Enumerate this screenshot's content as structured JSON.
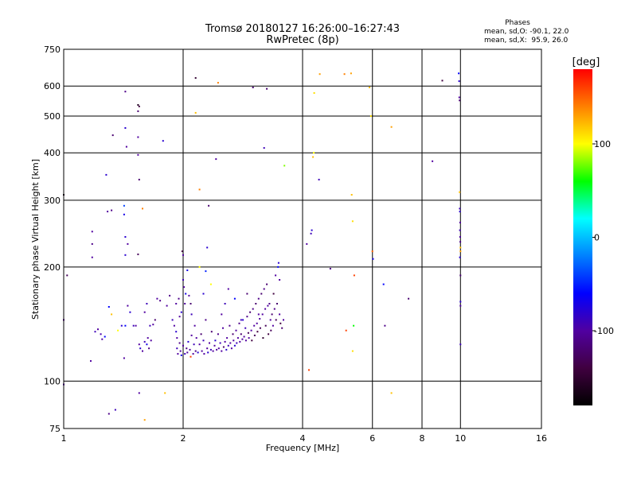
{
  "chart_data": {
    "type": "scatter",
    "title": "Tromsø 20180127 16:26:00–16:27:43",
    "subtitle": "RwPretec (8p)",
    "xlabel": "Frequency [MHz]",
    "ylabel": "Stationary phase Virtual Height [km]",
    "xscale": "log",
    "yscale": "log",
    "xlim": [
      1,
      16
    ],
    "ylim": [
      75,
      750
    ],
    "x_ticks": [
      1,
      2,
      4,
      6,
      8,
      10,
      16
    ],
    "y_ticks": [
      75,
      100,
      200,
      300,
      400,
      500,
      600,
      750
    ],
    "grid": true,
    "stats": {
      "heading": "Phases",
      "line_o": "mean, sd,O: -90.1, 22.0",
      "line_x": "mean, sd,X:  95.9, 26.0"
    },
    "colorbar": {
      "label": "[deg]",
      "ticks": [
        100,
        0,
        -100
      ],
      "range": [
        -180,
        180
      ],
      "colors": [
        "#000000",
        "#400040",
        "#5000a0",
        "#0000ff",
        "#0080ff",
        "#00ffff",
        "#00ff00",
        "#ffff00",
        "#ff8000",
        "#ff0000"
      ]
    },
    "points": [
      {
        "x": 1.0,
        "y": 310,
        "p": -160
      },
      {
        "x": 1.02,
        "y": 190,
        "p": -130
      },
      {
        "x": 1.0,
        "y": 145,
        "p": -110
      },
      {
        "x": 1.0,
        "y": 98,
        "p": -100
      },
      {
        "x": 1.18,
        "y": 248,
        "p": -100
      },
      {
        "x": 1.18,
        "y": 230,
        "p": -110
      },
      {
        "x": 1.18,
        "y": 212,
        "p": -100
      },
      {
        "x": 1.17,
        "y": 113,
        "p": -100
      },
      {
        "x": 1.2,
        "y": 135,
        "p": -90
      },
      {
        "x": 1.22,
        "y": 137,
        "p": -100
      },
      {
        "x": 1.24,
        "y": 133,
        "p": -95
      },
      {
        "x": 1.25,
        "y": 129,
        "p": -100
      },
      {
        "x": 1.27,
        "y": 131,
        "p": -60
      },
      {
        "x": 1.28,
        "y": 350,
        "p": -80
      },
      {
        "x": 1.29,
        "y": 280,
        "p": -100
      },
      {
        "x": 1.32,
        "y": 282,
        "p": -110
      },
      {
        "x": 1.33,
        "y": 445,
        "p": -120
      },
      {
        "x": 1.3,
        "y": 157,
        "p": -60
      },
      {
        "x": 1.32,
        "y": 150,
        "p": 120
      },
      {
        "x": 1.35,
        "y": 84,
        "p": -90
      },
      {
        "x": 1.3,
        "y": 82,
        "p": -110
      },
      {
        "x": 1.37,
        "y": 136,
        "p": 100
      },
      {
        "x": 1.4,
        "y": 140,
        "p": -80
      },
      {
        "x": 1.42,
        "y": 115,
        "p": -100
      },
      {
        "x": 1.43,
        "y": 140,
        "p": -60
      },
      {
        "x": 1.43,
        "y": 580,
        "p": -110
      },
      {
        "x": 1.43,
        "y": 465,
        "p": -80
      },
      {
        "x": 1.44,
        "y": 415,
        "p": -100
      },
      {
        "x": 1.42,
        "y": 290,
        "p": -40
      },
      {
        "x": 1.42,
        "y": 275,
        "p": -70
      },
      {
        "x": 1.43,
        "y": 240,
        "p": -80
      },
      {
        "x": 1.43,
        "y": 215,
        "p": -80
      },
      {
        "x": 1.45,
        "y": 230,
        "p": -100
      },
      {
        "x": 1.45,
        "y": 158,
        "p": -100
      },
      {
        "x": 1.47,
        "y": 152,
        "p": -80
      },
      {
        "x": 1.5,
        "y": 140,
        "p": -90
      },
      {
        "x": 1.52,
        "y": 140,
        "p": -100
      },
      {
        "x": 1.54,
        "y": 535,
        "p": -160
      },
      {
        "x": 1.55,
        "y": 530,
        "p": -140
      },
      {
        "x": 1.54,
        "y": 515,
        "p": -120
      },
      {
        "x": 1.54,
        "y": 440,
        "p": -100
      },
      {
        "x": 1.54,
        "y": 395,
        "p": -100
      },
      {
        "x": 1.55,
        "y": 340,
        "p": -120
      },
      {
        "x": 1.54,
        "y": 216,
        "p": -130
      },
      {
        "x": 1.55,
        "y": 93,
        "p": -100
      },
      {
        "x": 1.55,
        "y": 125,
        "p": -100
      },
      {
        "x": 1.56,
        "y": 122,
        "p": -80
      },
      {
        "x": 1.58,
        "y": 120,
        "p": -100
      },
      {
        "x": 1.6,
        "y": 127,
        "p": -90
      },
      {
        "x": 1.58,
        "y": 285,
        "p": 140
      },
      {
        "x": 1.6,
        "y": 79,
        "p": 130
      },
      {
        "x": 1.62,
        "y": 125,
        "p": -70
      },
      {
        "x": 1.63,
        "y": 130,
        "p": -100
      },
      {
        "x": 1.64,
        "y": 122,
        "p": -110
      },
      {
        "x": 1.66,
        "y": 128,
        "p": -100
      },
      {
        "x": 1.6,
        "y": 152,
        "p": -100
      },
      {
        "x": 1.62,
        "y": 160,
        "p": -90
      },
      {
        "x": 1.65,
        "y": 140,
        "p": -90
      },
      {
        "x": 1.68,
        "y": 141,
        "p": -100
      },
      {
        "x": 1.7,
        "y": 145,
        "p": -120
      },
      {
        "x": 1.72,
        "y": 165,
        "p": -100
      },
      {
        "x": 1.75,
        "y": 163,
        "p": -110
      },
      {
        "x": 1.78,
        "y": 430,
        "p": -80
      },
      {
        "x": 1.8,
        "y": 93,
        "p": 120
      },
      {
        "x": 1.82,
        "y": 158,
        "p": -100
      },
      {
        "x": 1.85,
        "y": 168,
        "p": -110
      },
      {
        "x": 1.88,
        "y": 145,
        "p": -90
      },
      {
        "x": 1.92,
        "y": 160,
        "p": -100
      },
      {
        "x": 1.95,
        "y": 165,
        "p": -110
      },
      {
        "x": 1.96,
        "y": 148,
        "p": -100
      },
      {
        "x": 1.98,
        "y": 152,
        "p": -80
      },
      {
        "x": 1.99,
        "y": 220,
        "p": -140
      },
      {
        "x": 2.0,
        "y": 215,
        "p": -100
      },
      {
        "x": 2.0,
        "y": 185,
        "p": -90
      },
      {
        "x": 2.01,
        "y": 177,
        "p": -100
      },
      {
        "x": 2.02,
        "y": 160,
        "p": -100
      },
      {
        "x": 2.03,
        "y": 170,
        "p": -70
      },
      {
        "x": 2.05,
        "y": 196,
        "p": -70
      },
      {
        "x": 2.07,
        "y": 168,
        "p": -100
      },
      {
        "x": 2.09,
        "y": 160,
        "p": -120
      },
      {
        "x": 2.1,
        "y": 150,
        "p": -90
      },
      {
        "x": 1.9,
        "y": 140,
        "p": -100
      },
      {
        "x": 1.92,
        "y": 135,
        "p": -80
      },
      {
        "x": 1.93,
        "y": 130,
        "p": -100
      },
      {
        "x": 1.93,
        "y": 122,
        "p": -90
      },
      {
        "x": 1.94,
        "y": 118,
        "p": -100
      },
      {
        "x": 1.96,
        "y": 126,
        "p": -110
      },
      {
        "x": 1.97,
        "y": 120,
        "p": -100
      },
      {
        "x": 1.98,
        "y": 117,
        "p": -70
      },
      {
        "x": 2.0,
        "y": 124,
        "p": -100
      },
      {
        "x": 2.02,
        "y": 118,
        "p": -90
      },
      {
        "x": 2.04,
        "y": 122,
        "p": -110
      },
      {
        "x": 2.05,
        "y": 119,
        "p": -100
      },
      {
        "x": 2.06,
        "y": 127,
        "p": -80
      },
      {
        "x": 2.08,
        "y": 121,
        "p": -100
      },
      {
        "x": 2.09,
        "y": 116,
        "p": 160
      },
      {
        "x": 2.1,
        "y": 132,
        "p": -100
      },
      {
        "x": 2.12,
        "y": 118,
        "p": -100
      },
      {
        "x": 2.13,
        "y": 125,
        "p": -90
      },
      {
        "x": 2.14,
        "y": 140,
        "p": -100
      },
      {
        "x": 2.15,
        "y": 120,
        "p": -110
      },
      {
        "x": 2.16,
        "y": 130,
        "p": -100
      },
      {
        "x": 2.18,
        "y": 119,
        "p": -80
      },
      {
        "x": 2.2,
        "y": 125,
        "p": -100
      },
      {
        "x": 2.22,
        "y": 133,
        "p": -120
      },
      {
        "x": 2.23,
        "y": 120,
        "p": -100
      },
      {
        "x": 2.25,
        "y": 128,
        "p": -90
      },
      {
        "x": 2.26,
        "y": 118,
        "p": -100
      },
      {
        "x": 2.28,
        "y": 145,
        "p": -110
      },
      {
        "x": 2.3,
        "y": 122,
        "p": -100
      },
      {
        "x": 2.31,
        "y": 119,
        "p": -80
      },
      {
        "x": 2.33,
        "y": 126,
        "p": -100
      },
      {
        "x": 2.35,
        "y": 121,
        "p": -90
      },
      {
        "x": 2.36,
        "y": 135,
        "p": -120
      },
      {
        "x": 2.38,
        "y": 120,
        "p": -100
      },
      {
        "x": 2.4,
        "y": 124,
        "p": -100
      },
      {
        "x": 2.41,
        "y": 128,
        "p": -80
      },
      {
        "x": 2.43,
        "y": 121,
        "p": -100
      },
      {
        "x": 2.45,
        "y": 133,
        "p": -110
      },
      {
        "x": 2.46,
        "y": 122,
        "p": -100
      },
      {
        "x": 2.48,
        "y": 126,
        "p": -90
      },
      {
        "x": 2.5,
        "y": 120,
        "p": -100
      },
      {
        "x": 2.52,
        "y": 138,
        "p": -100
      },
      {
        "x": 2.53,
        "y": 123,
        "p": -120
      },
      {
        "x": 2.55,
        "y": 127,
        "p": -100
      },
      {
        "x": 2.57,
        "y": 121,
        "p": -80
      },
      {
        "x": 2.58,
        "y": 130,
        "p": -100
      },
      {
        "x": 2.6,
        "y": 124,
        "p": -90
      },
      {
        "x": 2.62,
        "y": 140,
        "p": -110
      },
      {
        "x": 2.63,
        "y": 126,
        "p": -100
      },
      {
        "x": 2.65,
        "y": 122,
        "p": -100
      },
      {
        "x": 2.67,
        "y": 133,
        "p": -120
      },
      {
        "x": 2.68,
        "y": 128,
        "p": -100
      },
      {
        "x": 2.7,
        "y": 124,
        "p": -80
      },
      {
        "x": 2.72,
        "y": 136,
        "p": -100
      },
      {
        "x": 2.73,
        "y": 126,
        "p": -90
      },
      {
        "x": 2.75,
        "y": 130,
        "p": -100
      },
      {
        "x": 2.77,
        "y": 142,
        "p": -110
      },
      {
        "x": 2.78,
        "y": 127,
        "p": -100
      },
      {
        "x": 2.8,
        "y": 133,
        "p": -120
      },
      {
        "x": 2.82,
        "y": 129,
        "p": -100
      },
      {
        "x": 2.83,
        "y": 145,
        "p": -80
      },
      {
        "x": 2.85,
        "y": 131,
        "p": -100
      },
      {
        "x": 2.87,
        "y": 138,
        "p": -90
      },
      {
        "x": 2.88,
        "y": 128,
        "p": -100
      },
      {
        "x": 2.9,
        "y": 148,
        "p": -110
      },
      {
        "x": 2.92,
        "y": 134,
        "p": -130
      },
      {
        "x": 2.93,
        "y": 130,
        "p": -100
      },
      {
        "x": 2.95,
        "y": 152,
        "p": -120
      },
      {
        "x": 2.97,
        "y": 136,
        "p": -100
      },
      {
        "x": 2.98,
        "y": 128,
        "p": -140
      },
      {
        "x": 3.0,
        "y": 155,
        "p": -110
      },
      {
        "x": 3.02,
        "y": 140,
        "p": -100
      },
      {
        "x": 3.03,
        "y": 132,
        "p": -130
      },
      {
        "x": 3.05,
        "y": 160,
        "p": -120
      },
      {
        "x": 3.07,
        "y": 142,
        "p": -100
      },
      {
        "x": 3.08,
        "y": 135,
        "p": -140
      },
      {
        "x": 3.1,
        "y": 165,
        "p": -110
      },
      {
        "x": 3.12,
        "y": 146,
        "p": -100
      },
      {
        "x": 3.13,
        "y": 138,
        "p": -130
      },
      {
        "x": 3.15,
        "y": 170,
        "p": -120
      },
      {
        "x": 3.17,
        "y": 150,
        "p": -100
      },
      {
        "x": 3.18,
        "y": 130,
        "p": -150
      },
      {
        "x": 3.2,
        "y": 175,
        "p": -110
      },
      {
        "x": 3.22,
        "y": 155,
        "p": -100
      },
      {
        "x": 3.23,
        "y": 140,
        "p": -130
      },
      {
        "x": 3.25,
        "y": 180,
        "p": -120
      },
      {
        "x": 3.27,
        "y": 158,
        "p": -100
      },
      {
        "x": 3.28,
        "y": 133,
        "p": -140
      },
      {
        "x": 3.3,
        "y": 160,
        "p": -110
      },
      {
        "x": 3.32,
        "y": 145,
        "p": -100
      },
      {
        "x": 3.33,
        "y": 136,
        "p": -130
      },
      {
        "x": 3.35,
        "y": 150,
        "p": -120
      },
      {
        "x": 3.37,
        "y": 140,
        "p": -100
      },
      {
        "x": 3.38,
        "y": 170,
        "p": -140
      },
      {
        "x": 3.4,
        "y": 155,
        "p": -110
      },
      {
        "x": 3.42,
        "y": 190,
        "p": -100
      },
      {
        "x": 3.43,
        "y": 145,
        "p": -130
      },
      {
        "x": 3.45,
        "y": 160,
        "p": -120
      },
      {
        "x": 3.47,
        "y": 200,
        "p": -60
      },
      {
        "x": 3.48,
        "y": 205,
        "p": -80
      },
      {
        "x": 3.5,
        "y": 150,
        "p": -100
      },
      {
        "x": 3.52,
        "y": 142,
        "p": -140
      },
      {
        "x": 3.55,
        "y": 138,
        "p": -120
      },
      {
        "x": 3.58,
        "y": 145,
        "p": -100
      },
      {
        "x": 2.15,
        "y": 630,
        "p": -150
      },
      {
        "x": 2.2,
        "y": 320,
        "p": 140
      },
      {
        "x": 2.2,
        "y": 200,
        "p": 100
      },
      {
        "x": 2.25,
        "y": 170,
        "p": -80
      },
      {
        "x": 2.28,
        "y": 195,
        "p": -50
      },
      {
        "x": 2.3,
        "y": 225,
        "p": -80
      },
      {
        "x": 2.32,
        "y": 290,
        "p": -120
      },
      {
        "x": 2.35,
        "y": 180,
        "p": 100
      },
      {
        "x": 2.42,
        "y": 385,
        "p": -100
      },
      {
        "x": 2.45,
        "y": 612,
        "p": 140
      },
      {
        "x": 2.5,
        "y": 150,
        "p": -100
      },
      {
        "x": 2.55,
        "y": 160,
        "p": -90
      },
      {
        "x": 2.6,
        "y": 175,
        "p": -100
      },
      {
        "x": 2.7,
        "y": 165,
        "p": -60
      },
      {
        "x": 2.8,
        "y": 145,
        "p": -90
      },
      {
        "x": 2.9,
        "y": 170,
        "p": -120
      },
      {
        "x": 3.0,
        "y": 595,
        "p": -120
      },
      {
        "x": 3.1,
        "y": 150,
        "p": -100
      },
      {
        "x": 3.2,
        "y": 412,
        "p": -90
      },
      {
        "x": 3.25,
        "y": 590,
        "p": -120
      },
      {
        "x": 3.5,
        "y": 185,
        "p": -100
      },
      {
        "x": 3.6,
        "y": 370,
        "p": 80
      },
      {
        "x": 2.15,
        "y": 510,
        "p": 120
      },
      {
        "x": 4.1,
        "y": 230,
        "p": -100
      },
      {
        "x": 4.15,
        "y": 107,
        "p": 160
      },
      {
        "x": 4.2,
        "y": 245,
        "p": -90
      },
      {
        "x": 4.22,
        "y": 250,
        "p": -80
      },
      {
        "x": 4.25,
        "y": 390,
        "p": 120
      },
      {
        "x": 4.27,
        "y": 400,
        "p": 100
      },
      {
        "x": 4.28,
        "y": 575,
        "p": 110
      },
      {
        "x": 4.4,
        "y": 340,
        "p": -90
      },
      {
        "x": 4.42,
        "y": 645,
        "p": 130
      },
      {
        "x": 4.7,
        "y": 198,
        "p": -110
      },
      {
        "x": 5.1,
        "y": 645,
        "p": 140
      },
      {
        "x": 5.15,
        "y": 136,
        "p": 160
      },
      {
        "x": 5.3,
        "y": 648,
        "p": 130
      },
      {
        "x": 5.35,
        "y": 264,
        "p": 110
      },
      {
        "x": 5.32,
        "y": 310,
        "p": 120
      },
      {
        "x": 5.35,
        "y": 120,
        "p": 110
      },
      {
        "x": 5.38,
        "y": 140,
        "p": 60
      },
      {
        "x": 5.4,
        "y": 190,
        "p": 160
      },
      {
        "x": 5.9,
        "y": 595,
        "p": 120
      },
      {
        "x": 5.95,
        "y": 500,
        "p": 110
      },
      {
        "x": 6.0,
        "y": 220,
        "p": 150
      },
      {
        "x": 6.02,
        "y": 210,
        "p": -70
      },
      {
        "x": 6.4,
        "y": 180,
        "p": -60
      },
      {
        "x": 6.45,
        "y": 140,
        "p": -110
      },
      {
        "x": 6.7,
        "y": 468,
        "p": 130
      },
      {
        "x": 6.7,
        "y": 93,
        "p": 120
      },
      {
        "x": 7.4,
        "y": 165,
        "p": -120
      },
      {
        "x": 8.5,
        "y": 380,
        "p": -100
      },
      {
        "x": 9.0,
        "y": 620,
        "p": -140
      },
      {
        "x": 9.9,
        "y": 648,
        "p": -60
      },
      {
        "x": 9.92,
        "y": 618,
        "p": -80
      },
      {
        "x": 9.93,
        "y": 560,
        "p": -100
      },
      {
        "x": 9.95,
        "y": 550,
        "p": -120
      },
      {
        "x": 9.95,
        "y": 315,
        "p": 120
      },
      {
        "x": 9.96,
        "y": 285,
        "p": -90
      },
      {
        "x": 9.97,
        "y": 280,
        "p": -80
      },
      {
        "x": 9.98,
        "y": 262,
        "p": -100
      },
      {
        "x": 9.97,
        "y": 250,
        "p": -90
      },
      {
        "x": 9.98,
        "y": 240,
        "p": -100
      },
      {
        "x": 9.99,
        "y": 233,
        "p": -110
      },
      {
        "x": 10.0,
        "y": 225,
        "p": 120
      },
      {
        "x": 10.0,
        "y": 220,
        "p": 130
      },
      {
        "x": 9.97,
        "y": 212,
        "p": -80
      },
      {
        "x": 10.0,
        "y": 190,
        "p": -120
      },
      {
        "x": 10.0,
        "y": 162,
        "p": -80
      },
      {
        "x": 10.0,
        "y": 158,
        "p": -100
      },
      {
        "x": 10.0,
        "y": 125,
        "p": -90
      }
    ]
  }
}
